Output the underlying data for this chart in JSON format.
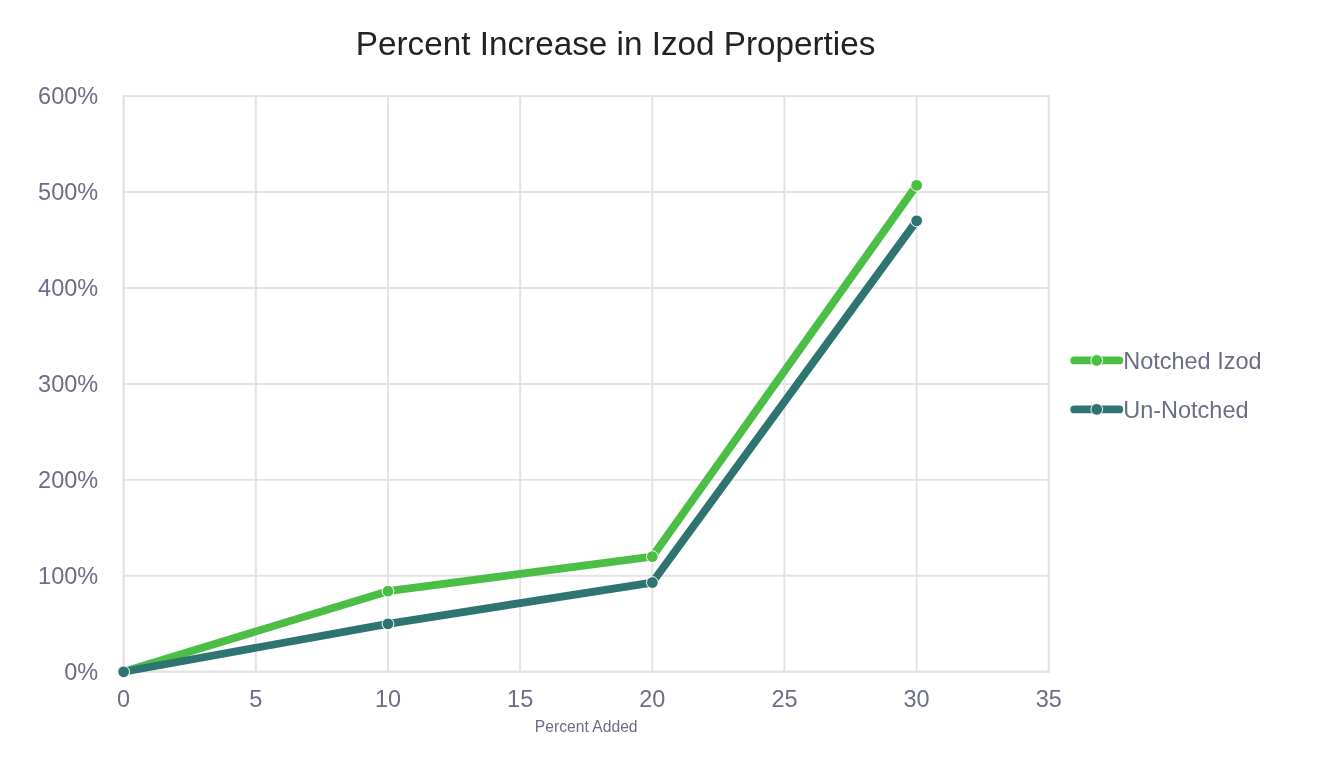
{
  "chart_data": {
    "type": "line",
    "title": "Percent Increase in Izod Properties",
    "xlabel": "Percent Added",
    "x": [
      0,
      10,
      20,
      30
    ],
    "series": [
      {
        "name": "Notched Izod",
        "color": "#4bbf45",
        "values": [
          0,
          84,
          120,
          507
        ]
      },
      {
        "name": "Un-Notched",
        "color": "#2e7470",
        "values": [
          0,
          50,
          93,
          470
        ]
      }
    ],
    "xlim": [
      0,
      35
    ],
    "xticks": [
      0,
      5,
      10,
      15,
      20,
      25,
      30,
      35
    ],
    "ylim": [
      0,
      600
    ],
    "yticks": [
      {
        "value": 0,
        "label": "0%"
      },
      {
        "value": 100,
        "label": "100%"
      },
      {
        "value": 200,
        "label": "200%"
      },
      {
        "value": 300,
        "label": "300%"
      },
      {
        "value": 400,
        "label": "400%"
      },
      {
        "value": 500,
        "label": "500%"
      },
      {
        "value": 600,
        "label": "600%"
      }
    ],
    "grid": true,
    "legend": "right",
    "marker": "circle",
    "line_style": "solid"
  }
}
